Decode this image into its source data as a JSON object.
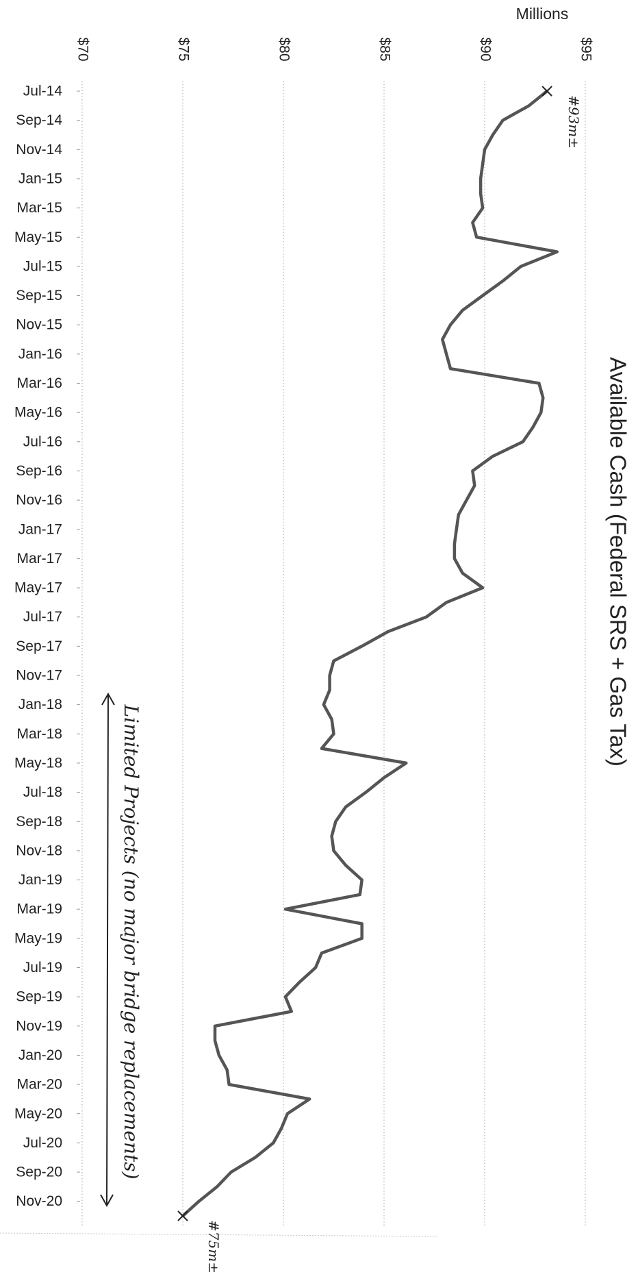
{
  "chart_data": {
    "type": "line",
    "title": "Available Cash (Federal SRS + Gas Tax)",
    "value_axis_unit": "Millions",
    "value_ticks": [
      "$70",
      "$75",
      "$80",
      "$85",
      "$90",
      "$95"
    ],
    "value_range": [
      70,
      95
    ],
    "category_ticks": [
      "Jul-14",
      "Sep-14",
      "Nov-14",
      "Jan-15",
      "Mar-15",
      "May-15",
      "Jul-15",
      "Sep-15",
      "Nov-15",
      "Jan-16",
      "Mar-16",
      "May-16",
      "Jul-16",
      "Sep-16",
      "Nov-16",
      "Jan-17",
      "Mar-17",
      "May-17",
      "Jul-17",
      "Sep-17",
      "Nov-17",
      "Jan-18",
      "Mar-18",
      "May-18",
      "Jul-18",
      "Sep-18",
      "Nov-18",
      "Jan-19",
      "Mar-19",
      "May-19",
      "Jul-19",
      "Sep-19",
      "Nov-19",
      "Jan-20",
      "Mar-20",
      "May-20",
      "Jul-20",
      "Sep-20",
      "Nov-20"
    ],
    "grid": true,
    "orientation": "rotated-90-clockwise",
    "series": [
      {
        "color": "#555555",
        "x": [
          "Jul-14",
          "Aug-14",
          "Sep-14",
          "Oct-14",
          "Nov-14",
          "Dec-14",
          "Jan-15",
          "Feb-15",
          "Mar-15",
          "Apr-15",
          "May-15",
          "Jun-15",
          "Jul-15",
          "Aug-15",
          "Sep-15",
          "Oct-15",
          "Nov-15",
          "Dec-15",
          "Jan-16",
          "Feb-16",
          "Mar-16",
          "Apr-16",
          "May-16",
          "Jun-16",
          "Jul-16",
          "Aug-16",
          "Sep-16",
          "Oct-16",
          "Nov-16",
          "Dec-16",
          "Jan-17",
          "Feb-17",
          "Mar-17",
          "Apr-17",
          "May-17",
          "Jun-17",
          "Jul-17",
          "Aug-17",
          "Sep-17",
          "Oct-17",
          "Nov-17",
          "Dec-17",
          "Jan-18",
          "Feb-18",
          "Mar-18",
          "Apr-18",
          "May-18",
          "Jun-18",
          "Jul-18",
          "Aug-18",
          "Sep-18",
          "Oct-18",
          "Nov-18",
          "Dec-18",
          "Jan-19",
          "Feb-19",
          "Mar-19",
          "Apr-19",
          "May-19",
          "Jun-19",
          "Jul-19",
          "Aug-19",
          "Sep-19",
          "Oct-19",
          "Nov-19",
          "Dec-19",
          "Jan-20",
          "Feb-20",
          "Mar-20",
          "Apr-20",
          "May-20",
          "Jun-20",
          "Jul-20",
          "Aug-20",
          "Sep-20",
          "Oct-20",
          "Nov-20",
          "Dec-20"
        ],
        "values": [
          93.1,
          92.2,
          90.9,
          90.4,
          90.0,
          89.9,
          89.8,
          89.8,
          89.9,
          89.4,
          89.6,
          93.6,
          91.8,
          90.9,
          89.9,
          88.9,
          88.3,
          87.9,
          88.1,
          88.3,
          92.7,
          92.9,
          92.8,
          92.4,
          91.9,
          90.4,
          89.4,
          89.5,
          89.1,
          88.7,
          88.6,
          88.5,
          88.5,
          88.9,
          89.9,
          88.1,
          87.1,
          85.2,
          83.9,
          82.5,
          82.3,
          82.3,
          82.0,
          82.4,
          82.5,
          81.9,
          86.1,
          85.0,
          84.1,
          83.1,
          82.6,
          82.4,
          82.5,
          83.1,
          83.9,
          83.8,
          80.1,
          83.9,
          83.9,
          81.9,
          81.6,
          80.8,
          80.1,
          80.4,
          76.6,
          76.6,
          76.8,
          77.2,
          77.3,
          81.3,
          80.2,
          79.9,
          79.5,
          78.6,
          77.4,
          76.7,
          75.8,
          75.0
        ]
      }
    ],
    "annotations": [
      "#93m±",
      "#75m±",
      "Limited Projects (no major bridge replacements)"
    ]
  }
}
